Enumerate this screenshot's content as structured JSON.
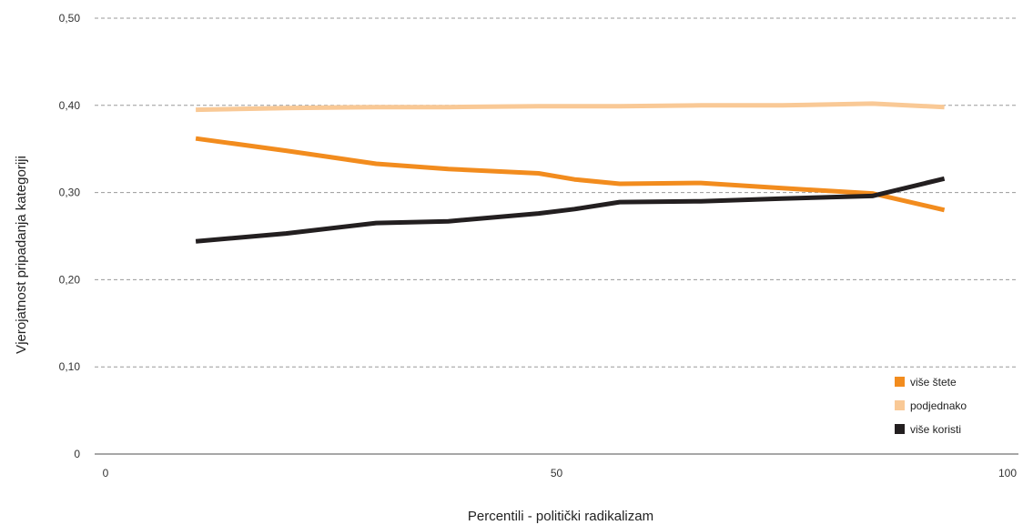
{
  "chart_data": {
    "type": "line",
    "title": "",
    "xlabel": "Percentili - politički radikalizam",
    "ylabel": "Vjerojatnost pripadanja kategoriji",
    "xlim": [
      0,
      100
    ],
    "ylim": [
      0,
      0.5
    ],
    "x_ticks": [
      {
        "value": 0,
        "label": "0"
      },
      {
        "value": 50,
        "label": "50"
      },
      {
        "value": 100,
        "label": "100"
      }
    ],
    "y_ticks": [
      {
        "value": 0,
        "label": "0"
      },
      {
        "value": 0.1,
        "label": "0,10"
      },
      {
        "value": 0.2,
        "label": "0,20"
      },
      {
        "value": 0.3,
        "label": "0,30"
      },
      {
        "value": 0.4,
        "label": "0,40"
      },
      {
        "value": 0.5,
        "label": "0,50"
      }
    ],
    "grid": true,
    "legend_position": "bottom-right",
    "x": [
      10,
      20,
      30,
      38,
      48,
      52,
      57,
      66,
      75,
      85,
      93
    ],
    "series": [
      {
        "name": "više štete",
        "color": "#F28C1E",
        "values": [
          0.362,
          0.348,
          0.333,
          0.327,
          0.322,
          0.315,
          0.31,
          0.311,
          0.305,
          0.299,
          0.28
        ]
      },
      {
        "name": "podjednako",
        "color": "#F9C996",
        "values": [
          0.395,
          0.397,
          0.398,
          0.398,
          0.399,
          0.399,
          0.399,
          0.4,
          0.4,
          0.402,
          0.398
        ]
      },
      {
        "name": "više koristi",
        "color": "#231F20",
        "values": [
          0.244,
          0.253,
          0.265,
          0.267,
          0.276,
          0.281,
          0.289,
          0.29,
          0.293,
          0.296,
          0.316
        ]
      }
    ]
  }
}
